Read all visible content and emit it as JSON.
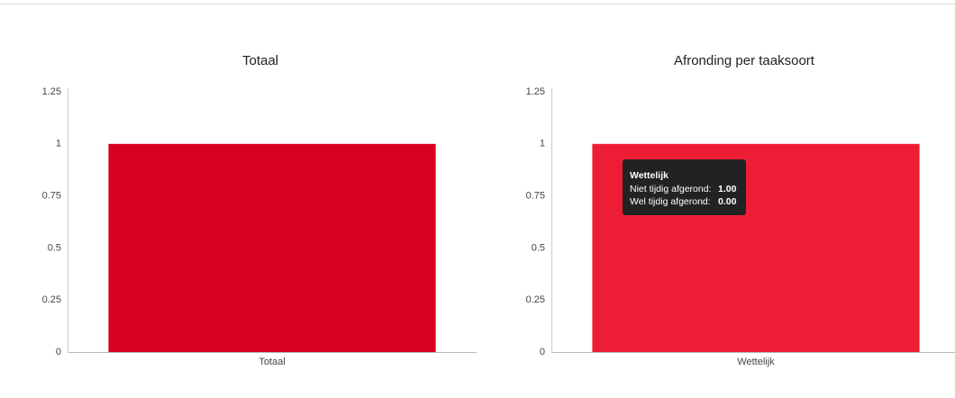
{
  "chart_data": [
    {
      "type": "bar",
      "title": "Totaal",
      "categories": [
        "Totaal"
      ],
      "values": [
        1
      ],
      "color": "#d7001e",
      "ylim": [
        0,
        1.25
      ],
      "yticks": [
        0,
        0.25,
        0.5,
        0.75,
        1,
        1.25
      ]
    },
    {
      "type": "stacked_bar",
      "title": "Afronding per taaksoort",
      "categories": [
        "Wettelijk"
      ],
      "series": [
        {
          "name": "Niet tijdig afgerond:",
          "color": "#ee1d36",
          "values": [
            1
          ],
          "value_labels": [
            "1.00"
          ]
        },
        {
          "name": "Wel tijdig afgerond:",
          "values": [
            0
          ],
          "value_labels": [
            "0.00"
          ]
        }
      ],
      "ylim": [
        0,
        1.25
      ],
      "yticks": [
        0,
        0.25,
        0.5,
        0.75,
        1,
        1.25
      ]
    }
  ]
}
